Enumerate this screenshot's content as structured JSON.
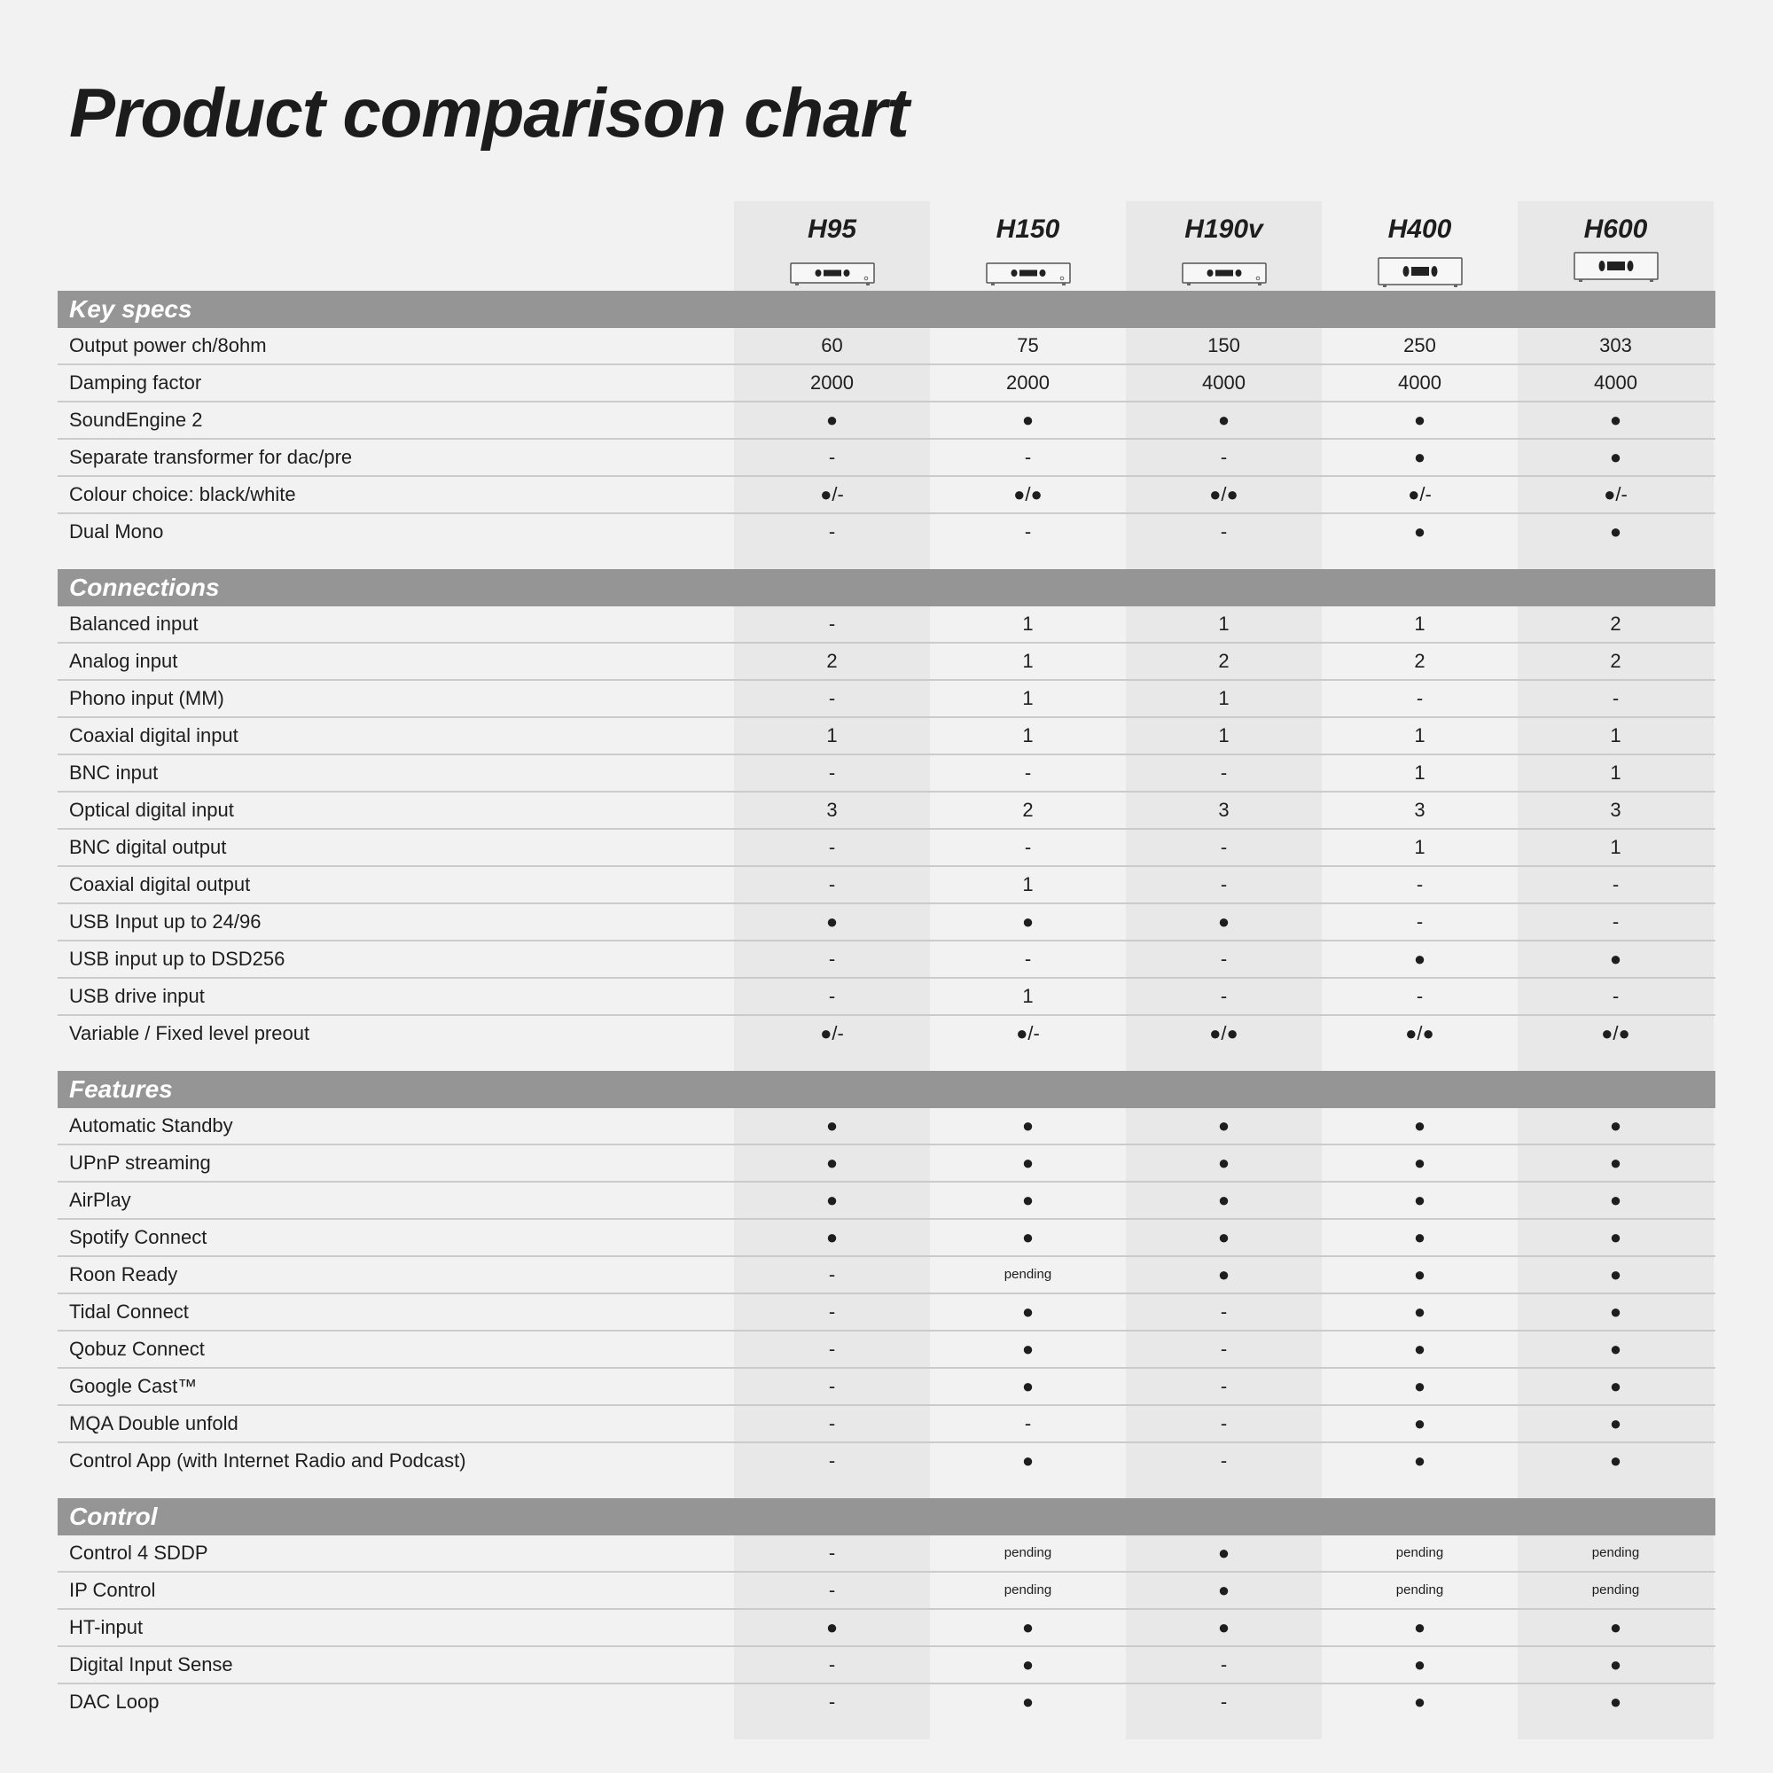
{
  "title": "Product comparison chart",
  "products": [
    "H95",
    "H150",
    "H190v",
    "H400",
    "H600"
  ],
  "sections": [
    {
      "name": "Key specs",
      "rows": [
        {
          "label": "Output power ch/8ohm",
          "values": [
            "60",
            "75",
            "150",
            "250",
            "303"
          ]
        },
        {
          "label": "Damping factor",
          "values": [
            "2000",
            "2000",
            "4000",
            "4000",
            "4000"
          ]
        },
        {
          "label": "SoundEngine 2",
          "values": [
            "●",
            "●",
            "●",
            "●",
            "●"
          ]
        },
        {
          "label": "Separate transformer for dac/pre",
          "values": [
            "-",
            "-",
            "-",
            "●",
            "●"
          ]
        },
        {
          "label": "Colour choice: black/white",
          "values": [
            "●/-",
            "●/●",
            "●/●",
            "●/-",
            "●/-"
          ]
        },
        {
          "label": "Dual Mono",
          "values": [
            "-",
            "-",
            "-",
            "●",
            "●"
          ]
        }
      ]
    },
    {
      "name": "Connections",
      "rows": [
        {
          "label": "Balanced input",
          "values": [
            "-",
            "1",
            "1",
            "1",
            "2"
          ]
        },
        {
          "label": "Analog input",
          "values": [
            "2",
            "1",
            "2",
            "2",
            "2"
          ]
        },
        {
          "label": "Phono input (MM)",
          "values": [
            "-",
            "1",
            "1",
            "-",
            "-"
          ]
        },
        {
          "label": "Coaxial digital input",
          "values": [
            "1",
            "1",
            "1",
            "1",
            "1"
          ]
        },
        {
          "label": "BNC input",
          "values": [
            "-",
            "-",
            "-",
            "1",
            "1"
          ]
        },
        {
          "label": "Optical digital input",
          "values": [
            "3",
            "2",
            "3",
            "3",
            "3"
          ]
        },
        {
          "label": "BNC digital output",
          "values": [
            "-",
            "-",
            "-",
            "1",
            "1"
          ]
        },
        {
          "label": "Coaxial digital output",
          "values": [
            "-",
            "1",
            "-",
            "-",
            "-"
          ]
        },
        {
          "label": "USB Input up to 24/96",
          "values": [
            "●",
            "●",
            "●",
            "-",
            "-"
          ]
        },
        {
          "label": "USB input up to DSD256",
          "values": [
            "-",
            "-",
            "-",
            "●",
            "●"
          ]
        },
        {
          "label": "USB drive input",
          "values": [
            "-",
            "1",
            "-",
            "-",
            "-"
          ]
        },
        {
          "label": "Variable / Fixed level preout",
          "values": [
            "●/-",
            "●/-",
            "●/●",
            "●/●",
            "●/●"
          ]
        }
      ]
    },
    {
      "name": "Features",
      "rows": [
        {
          "label": "Automatic Standby",
          "values": [
            "●",
            "●",
            "●",
            "●",
            "●"
          ]
        },
        {
          "label": "UPnP streaming",
          "values": [
            "●",
            "●",
            "●",
            "●",
            "●"
          ]
        },
        {
          "label": "AirPlay",
          "values": [
            "●",
            "●",
            "●",
            "●",
            "●"
          ]
        },
        {
          "label": "Spotify Connect",
          "values": [
            "●",
            "●",
            "●",
            "●",
            "●"
          ]
        },
        {
          "label": "Roon Ready",
          "values": [
            "-",
            "pending",
            "●",
            "●",
            "●"
          ]
        },
        {
          "label": "Tidal Connect",
          "values": [
            "-",
            "●",
            "-",
            "●",
            "●"
          ]
        },
        {
          "label": "Qobuz Connect",
          "values": [
            "-",
            "●",
            "-",
            "●",
            "●"
          ]
        },
        {
          "label": "Google Cast™",
          "values": [
            "-",
            "●",
            "-",
            "●",
            "●"
          ]
        },
        {
          "label": "MQA Double unfold",
          "values": [
            "-",
            "-",
            "-",
            "●",
            "●"
          ]
        },
        {
          "label": "Control App (with Internet Radio and Podcast)",
          "values": [
            "-",
            "●",
            "-",
            "●",
            "●"
          ]
        }
      ]
    },
    {
      "name": "Control",
      "rows": [
        {
          "label": "Control 4 SDDP",
          "values": [
            "-",
            "pending",
            "●",
            "pending",
            "pending"
          ]
        },
        {
          "label": "IP Control",
          "values": [
            "-",
            "pending",
            "●",
            "pending",
            "pending"
          ]
        },
        {
          "label": "HT-input",
          "values": [
            "●",
            "●",
            "●",
            "●",
            "●"
          ]
        },
        {
          "label": "Digital Input Sense",
          "values": [
            "-",
            "●",
            "-",
            "●",
            "●"
          ]
        },
        {
          "label": "DAC Loop",
          "values": [
            "-",
            "●",
            "-",
            "●",
            "●"
          ]
        }
      ]
    }
  ],
  "colors": {
    "background": "#f2f2f2",
    "section_header": "#959595",
    "column_shade": "#e8e8e8"
  },
  "icons": [
    "amplifier-device-icon"
  ]
}
